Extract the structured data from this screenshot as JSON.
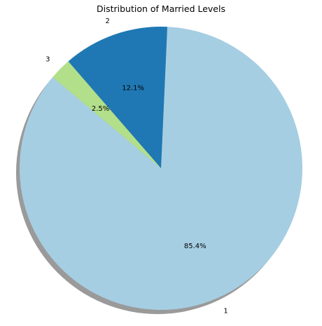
{
  "chart_data": {
    "type": "pie",
    "title": "Distribution of Married Levels",
    "slices": [
      {
        "label": "1",
        "value": 85.4,
        "pct_label": "85.4%",
        "color": "#a6cee3"
      },
      {
        "label": "2",
        "value": 12.1,
        "pct_label": "12.1%",
        "color": "#1f78b4"
      },
      {
        "label": "3",
        "value": 2.5,
        "pct_label": "2.5%",
        "color": "#b2df8a"
      }
    ],
    "shadow": true,
    "start_angle_deg": 140,
    "direction": "counterclockwise"
  }
}
